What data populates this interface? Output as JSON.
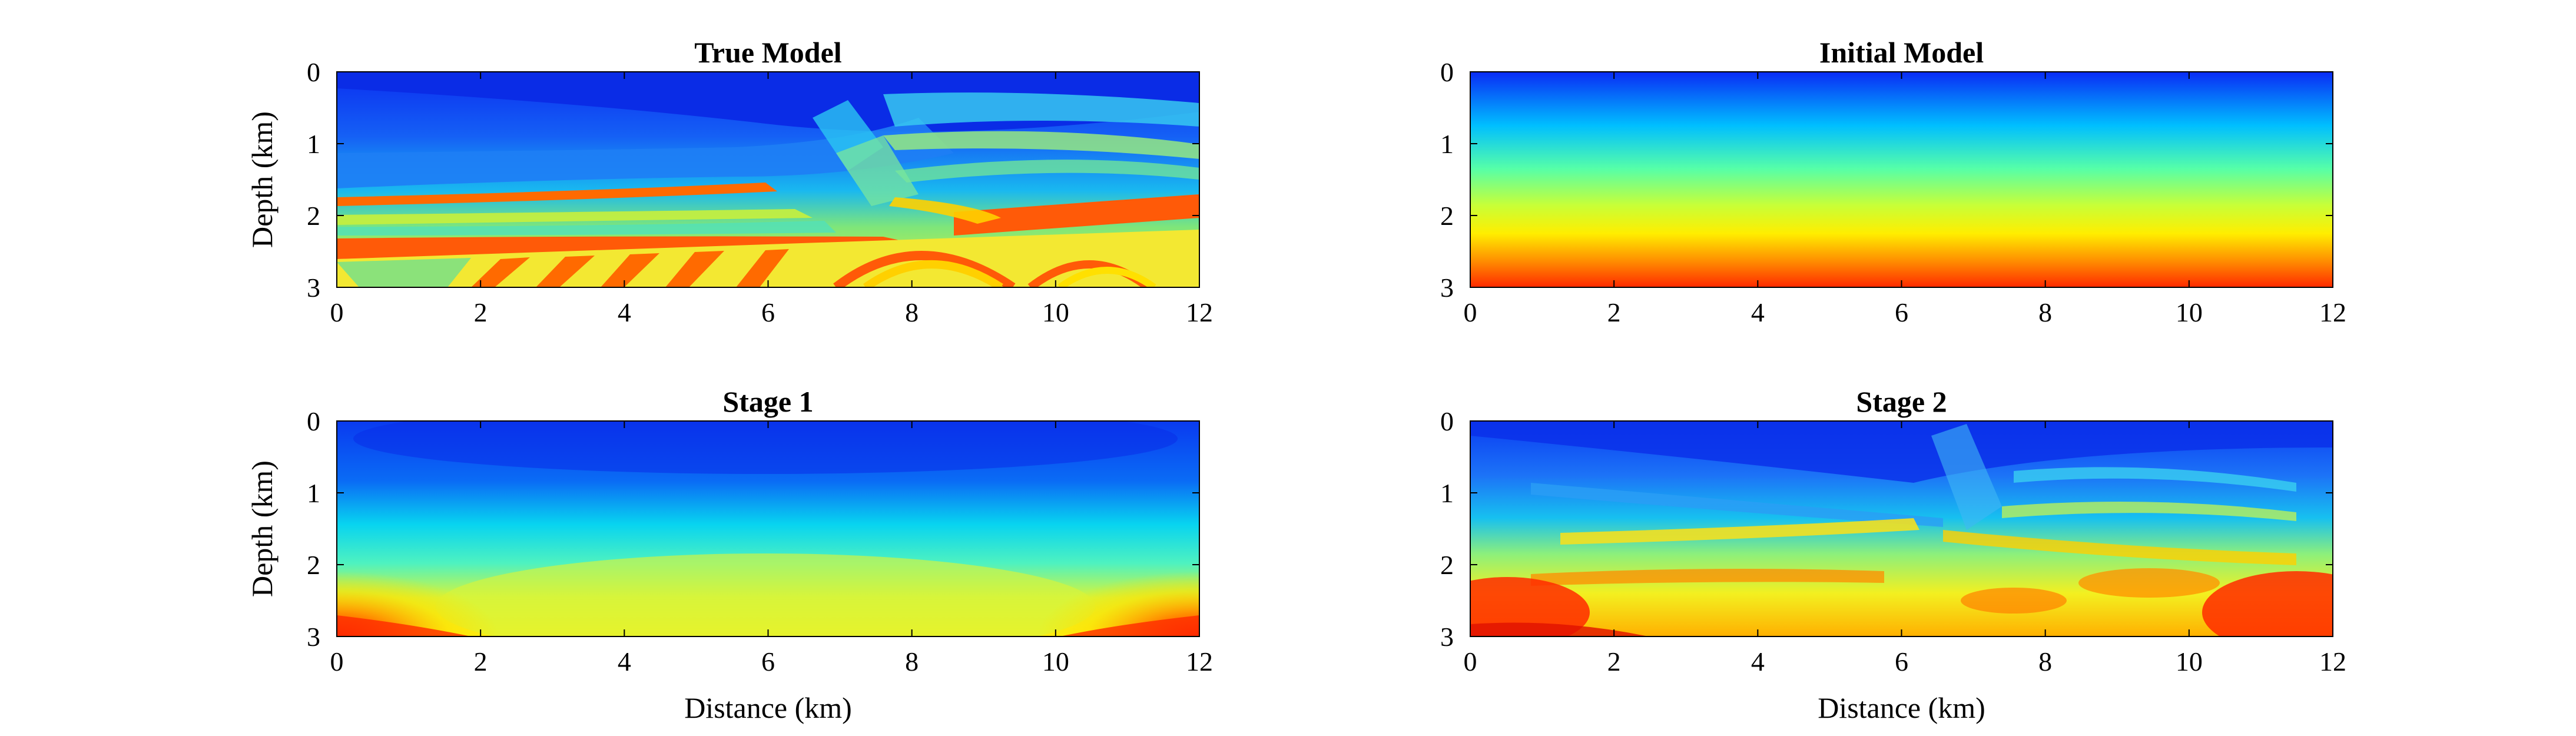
{
  "colors": {
    "colormap": "jet",
    "axis": "#000000",
    "background": "#ffffff"
  },
  "chart_data": [
    {
      "type": "heatmap",
      "title": "True Model",
      "xlabel": "",
      "ylabel": "Depth (km)",
      "xlim": [
        0,
        12
      ],
      "ylim": [
        0,
        3
      ],
      "y_reversed": true,
      "xticks": [
        "0",
        "2",
        "4",
        "6",
        "8",
        "10",
        "12"
      ],
      "yticks": [
        "0",
        "1",
        "2",
        "3"
      ],
      "colormap": "jet",
      "grid": false
    },
    {
      "type": "heatmap",
      "title": "Initial Model",
      "xlabel": "",
      "ylabel": "",
      "xlim": [
        0,
        12
      ],
      "ylim": [
        0,
        3
      ],
      "y_reversed": true,
      "xticks": [
        "0",
        "2",
        "4",
        "6",
        "8",
        "10",
        "12"
      ],
      "yticks": [
        "0",
        "1",
        "2",
        "3"
      ],
      "colormap": "jet",
      "grid": false
    },
    {
      "type": "heatmap",
      "title": "Stage 1",
      "xlabel": "Distance (km)",
      "ylabel": "Depth (km)",
      "xlim": [
        0,
        12
      ],
      "ylim": [
        0,
        3
      ],
      "y_reversed": true,
      "xticks": [
        "0",
        "2",
        "4",
        "6",
        "8",
        "10",
        "12"
      ],
      "yticks": [
        "0",
        "1",
        "2",
        "3"
      ],
      "colormap": "jet",
      "grid": false
    },
    {
      "type": "heatmap",
      "title": "Stage 2",
      "xlabel": "Distance (km)",
      "ylabel": "",
      "xlim": [
        0,
        12
      ],
      "ylim": [
        0,
        3
      ],
      "y_reversed": true,
      "xticks": [
        "0",
        "2",
        "4",
        "6",
        "8",
        "10",
        "12"
      ],
      "yticks": [
        "0",
        "1",
        "2",
        "3"
      ],
      "colormap": "jet",
      "grid": false
    }
  ]
}
